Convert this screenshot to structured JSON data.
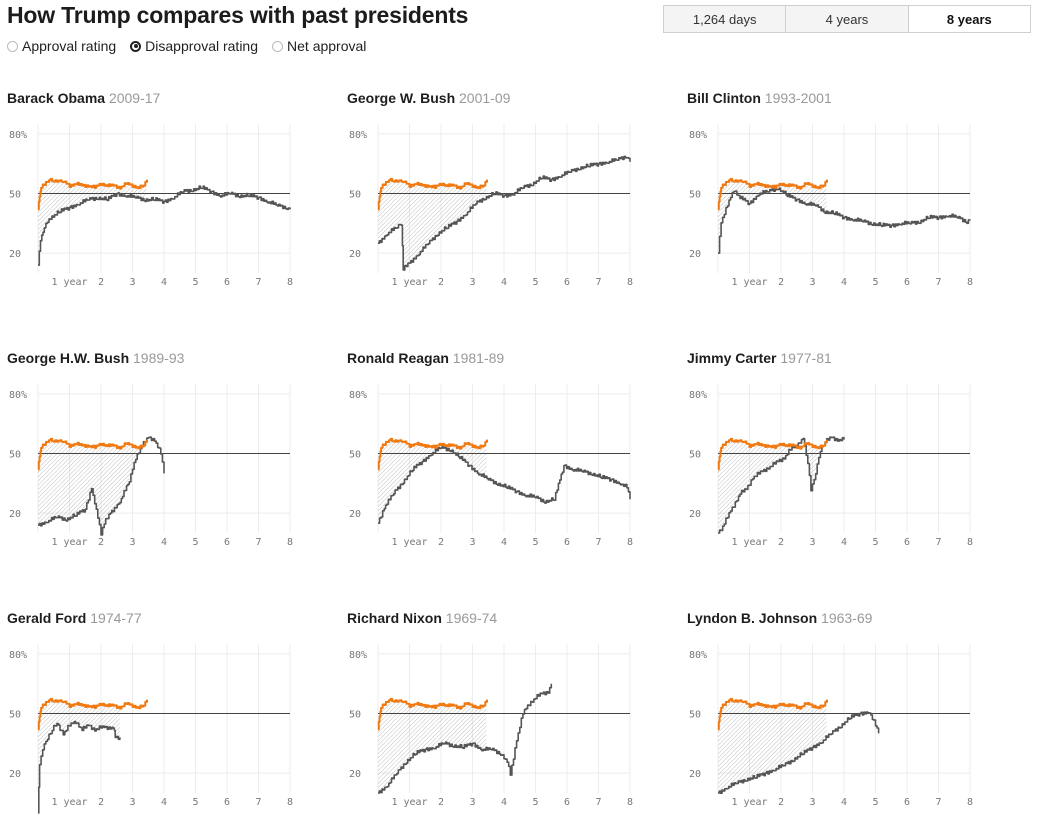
{
  "header": {
    "title": "How Trump compares with past presidents",
    "radios": [
      {
        "label": "Approval rating",
        "checked": false
      },
      {
        "label": "Disapproval rating",
        "checked": true
      },
      {
        "label": "Net approval",
        "checked": false
      }
    ],
    "toggle": [
      {
        "label": "1,264 days",
        "active": false
      },
      {
        "label": "4 years",
        "active": false
      },
      {
        "label": "8 years",
        "active": true
      }
    ]
  },
  "colors": {
    "trump": "#f07a11",
    "president": "#555555",
    "reference_line": "#444444",
    "shade": "#b9b9b9"
  },
  "chart_data": {
    "type": "line",
    "metric": "Disapproval rating",
    "x_unit": "years in office",
    "ylim": [
      10,
      85
    ],
    "xlim": [
      0,
      8
    ],
    "y_ticks": [
      "80%",
      "50",
      "20"
    ],
    "y_tick_values": [
      80,
      50,
      20
    ],
    "x_ticks": [
      "1 year",
      "2",
      "3",
      "4",
      "5",
      "6",
      "7",
      "8"
    ],
    "x_tick_values": [
      1,
      2,
      3,
      4,
      5,
      6,
      7,
      8
    ],
    "reference_value": 50,
    "trump": {
      "x": [
        0,
        0.05,
        0.1,
        0.2,
        0.35,
        0.5,
        0.65,
        0.8,
        1.0,
        1.2,
        1.4,
        1.6,
        1.8,
        2.0,
        2.2,
        2.4,
        2.6,
        2.8,
        3.0,
        3.2,
        3.35,
        3.46
      ],
      "y": [
        42,
        49,
        53,
        55,
        57,
        56,
        57,
        56,
        54,
        55,
        54,
        54,
        53,
        55,
        54,
        54,
        53,
        55,
        54,
        53,
        54,
        57
      ]
    },
    "charts": [
      {
        "name": "Barack Obama",
        "years": "2009-17",
        "x": [
          0,
          0.08,
          0.2,
          0.4,
          0.7,
          1.0,
          1.3,
          1.6,
          1.9,
          2.2,
          2.5,
          2.8,
          3.1,
          3.4,
          3.7,
          4.0,
          4.3,
          4.6,
          4.9,
          5.2,
          5.5,
          5.8,
          6.1,
          6.4,
          6.7,
          7.0,
          7.3,
          7.6,
          7.9,
          8.0
        ],
        "y": [
          14,
          27,
          33,
          38,
          41,
          43,
          45,
          47,
          48,
          47,
          50,
          49,
          48,
          47,
          47,
          46,
          48,
          51,
          52,
          53,
          51,
          49,
          50,
          49,
          49,
          48,
          46,
          44,
          43,
          42
        ]
      },
      {
        "name": "George W. Bush",
        "years": "2001-09",
        "x": [
          0,
          0.3,
          0.6,
          0.75,
          0.8,
          1.0,
          1.3,
          1.6,
          1.9,
          2.2,
          2.5,
          2.8,
          3.1,
          3.4,
          3.7,
          4.0,
          4.3,
          4.6,
          4.9,
          5.2,
          5.5,
          5.8,
          6.1,
          6.4,
          6.7,
          7.0,
          7.3,
          7.6,
          7.9,
          8.0
        ],
        "y": [
          25,
          30,
          33,
          35,
          12,
          15,
          20,
          25,
          30,
          33,
          36,
          40,
          45,
          48,
          50,
          49,
          50,
          53,
          55,
          58,
          57,
          59,
          61,
          63,
          64,
          65,
          66,
          67,
          69,
          66
        ]
      },
      {
        "name": "Bill Clinton",
        "years": "1993-2001",
        "x": [
          0,
          0.1,
          0.3,
          0.5,
          0.7,
          1.0,
          1.3,
          1.6,
          1.9,
          2.2,
          2.5,
          2.8,
          3.1,
          3.4,
          3.7,
          4.0,
          4.3,
          4.6,
          4.9,
          5.2,
          5.5,
          5.8,
          6.1,
          6.4,
          6.7,
          7.0,
          7.3,
          7.6,
          7.9,
          8.0
        ],
        "y": [
          20,
          36,
          44,
          52,
          48,
          45,
          50,
          51,
          53,
          49,
          47,
          45,
          44,
          41,
          40,
          38,
          37,
          36,
          35,
          34,
          34,
          35,
          35,
          36,
          38,
          38,
          39,
          38,
          36,
          37
        ]
      },
      {
        "name": "George H.W. Bush",
        "years": "1989-93",
        "x": [
          0,
          0.3,
          0.6,
          0.9,
          1.2,
          1.5,
          1.7,
          1.8,
          2.0,
          2.1,
          2.3,
          2.6,
          2.9,
          3.1,
          3.3,
          3.5,
          3.7,
          3.9,
          4.0
        ],
        "y": [
          14,
          16,
          18,
          17,
          19,
          22,
          33,
          25,
          10,
          15,
          20,
          26,
          36,
          48,
          54,
          58,
          57,
          50,
          40
        ]
      },
      {
        "name": "Ronald Reagan",
        "years": "1981-89",
        "x": [
          0,
          0.2,
          0.5,
          0.8,
          1.1,
          1.4,
          1.7,
          2.0,
          2.3,
          2.6,
          2.9,
          3.2,
          3.5,
          3.8,
          4.1,
          4.4,
          4.7,
          5.0,
          5.3,
          5.6,
          5.9,
          6.2,
          6.5,
          6.8,
          7.1,
          7.4,
          7.7,
          7.9,
          8.0
        ],
        "y": [
          15,
          23,
          30,
          36,
          42,
          46,
          50,
          53,
          52,
          48,
          44,
          40,
          37,
          35,
          33,
          31,
          29,
          28,
          26,
          27,
          44,
          42,
          41,
          40,
          38,
          37,
          35,
          33,
          27
        ]
      },
      {
        "name": "Jimmy Carter",
        "years": "1977-81",
        "x": [
          0,
          0.1,
          0.3,
          0.5,
          0.7,
          0.9,
          1.1,
          1.3,
          1.5,
          1.7,
          1.9,
          2.1,
          2.3,
          2.5,
          2.7,
          2.85,
          2.95,
          3.1,
          3.25,
          3.4,
          3.6,
          3.8,
          4.0
        ],
        "y": [
          10,
          12,
          18,
          24,
          30,
          32,
          38,
          40,
          42,
          44,
          46,
          48,
          52,
          54,
          58,
          45,
          32,
          40,
          52,
          56,
          58,
          57,
          57
        ]
      },
      {
        "name": "Gerald Ford",
        "years": "1974-77",
        "x": [
          0,
          0.05,
          0.15,
          0.3,
          0.45,
          0.6,
          0.8,
          1.0,
          1.2,
          1.4,
          1.6,
          1.8,
          2.0,
          2.2,
          2.4,
          2.45,
          2.6
        ],
        "y": [
          0,
          25,
          32,
          38,
          42,
          45,
          40,
          44,
          46,
          42,
          44,
          42,
          43,
          43,
          43,
          38,
          38
        ]
      },
      {
        "name": "Richard Nixon",
        "years": "1969-74",
        "x": [
          0,
          0.3,
          0.6,
          0.9,
          1.2,
          1.5,
          1.8,
          2.1,
          2.4,
          2.7,
          3.0,
          3.3,
          3.6,
          3.9,
          4.1,
          4.2,
          4.4,
          4.6,
          4.8,
          5.0,
          5.2,
          5.4,
          5.5
        ],
        "y": [
          10,
          14,
          20,
          26,
          30,
          32,
          33,
          35,
          34,
          33,
          35,
          32,
          32,
          30,
          26,
          19,
          37,
          50,
          55,
          58,
          60,
          61,
          65
        ]
      },
      {
        "name": "Lyndon B. Johnson",
        "years": "1963-69",
        "x": [
          0,
          0.3,
          0.6,
          0.9,
          1.2,
          1.5,
          1.8,
          2.1,
          2.4,
          2.7,
          3.0,
          3.3,
          3.6,
          3.9,
          4.2,
          4.5,
          4.8,
          5.0,
          5.1
        ],
        "y": [
          10,
          13,
          15,
          17,
          18,
          20,
          22,
          24,
          27,
          30,
          33,
          36,
          40,
          44,
          48,
          50,
          51,
          44,
          40
        ]
      }
    ]
  }
}
